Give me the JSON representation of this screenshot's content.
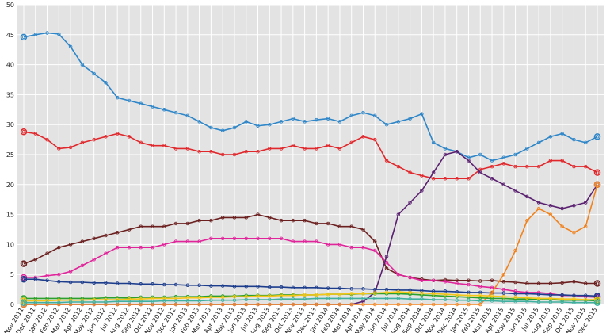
{
  "chart_data": {
    "type": "line",
    "title": "",
    "xlabel": "",
    "ylabel": "",
    "ylim": [
      0,
      50
    ],
    "yticks": [
      0,
      5,
      10,
      15,
      20,
      25,
      30,
      35,
      40,
      45,
      50
    ],
    "grid": true,
    "background": "#e3e3e3",
    "x_tick_labels": [
      "Nov 2011",
      "Dec 2011",
      "Jan 2012",
      "Feb 2012",
      "Mar 2012",
      "Apr 2012",
      "May 2012",
      "Jun 2012",
      "Jul 2012",
      "Aug 2012",
      "Sep 2012",
      "Oct 2012",
      "Nov 2012",
      "Dec 2012",
      "Jan 2013",
      "Feb 2013",
      "Mar 2013",
      "Apr 2013",
      "May 2013",
      "Jun 2013",
      "Jul 2013",
      "Aug 2013",
      "Sep 2013",
      "Oct 2013",
      "Nov 2013",
      "Dec 2013",
      "Jan 2014",
      "Feb 2014",
      "Mar 2014",
      "Apr 2014",
      "May 2014",
      "Jun 2014",
      "Jul 2014",
      "Aug 2014",
      "Sep 2014",
      "Oct 2014",
      "Nov 2014",
      "Dec 2014",
      "Jan 2015",
      "Feb 2015",
      "Mar 2015",
      "Apr 2015",
      "May 2015",
      "Jun 2015",
      "Jul 2015",
      "Aug 2015",
      "Sep 2015",
      "Oct 2015",
      "Nov 2015",
      "Dec 2015"
    ],
    "series": [
      {
        "color": "#2e86c8",
        "values": [
          44.6,
          45,
          45.3,
          45.1,
          43,
          40,
          38.5,
          37,
          34.5,
          34,
          33.5,
          33,
          32.5,
          32,
          31.5,
          30.5,
          29.5,
          29,
          29.5,
          30.5,
          29.8,
          30,
          30.5,
          31,
          30.5,
          30.8,
          31,
          30.5,
          31.5,
          32,
          31.5,
          30,
          30.5,
          31,
          31.8,
          27,
          26,
          25.5,
          24.5,
          25,
          24,
          24.5,
          25,
          26,
          27,
          28,
          28.5,
          27.5,
          27,
          28
        ]
      },
      {
        "color": "#e0282c",
        "values": [
          28.8,
          28.5,
          27.5,
          26,
          26.2,
          27,
          27.5,
          28,
          28.5,
          28,
          27,
          26.5,
          26.5,
          26,
          26,
          25.5,
          25.5,
          25,
          25,
          25.5,
          25.5,
          26,
          26,
          26.5,
          26,
          26,
          26.5,
          26,
          27,
          28,
          27.5,
          24,
          23,
          22,
          21.5,
          21,
          21,
          21,
          21,
          22.5,
          23,
          23.5,
          23,
          23,
          23,
          24,
          24,
          23,
          23,
          22
        ]
      },
      {
        "color": "#6b1f1f",
        "values": [
          6.8,
          7.5,
          8.5,
          9.5,
          10,
          10.5,
          11,
          11.5,
          12,
          12.5,
          13,
          13,
          13,
          13.5,
          13.5,
          14,
          14,
          14.5,
          14.5,
          14.5,
          15,
          14.5,
          14,
          14,
          14,
          13.5,
          13.5,
          13,
          13,
          12.5,
          10.5,
          6,
          5,
          4.5,
          4.2,
          4,
          4.1,
          4,
          4,
          3.9,
          4,
          3.8,
          3.7,
          3.5,
          3.5,
          3.5,
          3.6,
          3.8,
          3.5,
          3.5
        ]
      },
      {
        "color": "#e0249a",
        "values": [
          4.5,
          4.5,
          4.8,
          5,
          5.5,
          6.5,
          7.5,
          8.5,
          9.5,
          9.5,
          9.5,
          9.5,
          10,
          10.5,
          10.5,
          10.5,
          11,
          11,
          11,
          11,
          11,
          11,
          11,
          10.5,
          10.5,
          10.5,
          10,
          10,
          9.5,
          9.5,
          9,
          7,
          5,
          4.5,
          4,
          4,
          3.8,
          3.5,
          3.3,
          3,
          2.8,
          2.5,
          2.2,
          2,
          2,
          1.8,
          1.5,
          1.5,
          1.3,
          1.2
        ]
      },
      {
        "color": "#1c3c8c",
        "values": [
          4.2,
          4.2,
          4,
          3.8,
          3.7,
          3.7,
          3.6,
          3.6,
          3.5,
          3.5,
          3.4,
          3.4,
          3.3,
          3.3,
          3.2,
          3.2,
          3.1,
          3.1,
          3,
          3,
          3,
          2.9,
          2.9,
          2.8,
          2.8,
          2.8,
          2.7,
          2.7,
          2.6,
          2.6,
          2.5,
          2.5,
          2.4,
          2.4,
          2.3,
          2.2,
          2.2,
          2.1,
          2,
          2,
          1.9,
          1.9,
          1.8,
          1.8,
          1.7,
          1.6,
          1.6,
          1.5,
          1.5,
          1.4
        ]
      },
      {
        "color": "#5a2070",
        "values": [
          0,
          0,
          0,
          0,
          0,
          0,
          0,
          0,
          0,
          0,
          0,
          0,
          0,
          0,
          0,
          0,
          0,
          0,
          0,
          0,
          0,
          0,
          0,
          0,
          0,
          0,
          0,
          0,
          0,
          0.5,
          2,
          8,
          15,
          17,
          19,
          22,
          25,
          25.5,
          24,
          22,
          21,
          20,
          19,
          18,
          17,
          16.5,
          16,
          16.5,
          17,
          20
        ]
      },
      {
        "color": "#f0821e",
        "values": [
          0,
          0,
          0,
          0,
          0,
          0,
          0,
          0,
          0,
          0,
          0,
          0,
          0,
          0,
          0,
          0,
          0,
          0,
          0,
          0,
          0,
          0,
          0,
          0,
          0,
          0,
          0,
          0,
          0,
          0,
          0,
          0,
          0,
          0,
          0,
          0,
          0,
          0,
          0,
          0,
          2,
          5,
          9,
          14,
          16,
          15,
          13,
          12,
          13,
          20
        ]
      },
      {
        "color": "#2ca02c",
        "values": [
          1,
          1,
          1,
          1,
          1,
          1,
          1,
          1.1,
          1.1,
          1.1,
          1.2,
          1.2,
          1.2,
          1.3,
          1.3,
          1.3,
          1.4,
          1.4,
          1.4,
          1.5,
          1.5,
          1.5,
          1.6,
          1.6,
          1.6,
          1.6,
          1.7,
          1.7,
          1.7,
          1.8,
          1.8,
          1.8,
          1.8,
          1.7,
          1.6,
          1.5,
          1.4,
          1.3,
          1.2,
          1.1,
          1,
          1,
          0.9,
          0.9,
          0.8,
          0.8,
          0.7,
          0.7,
          0.7,
          0.6
        ]
      },
      {
        "color": "#f5c518",
        "values": [
          0.6,
          0.6,
          0.6,
          0.7,
          0.7,
          0.7,
          0.8,
          0.8,
          0.8,
          0.9,
          0.9,
          1,
          1,
          1,
          1.1,
          1.1,
          1.2,
          1.2,
          1.3,
          1.3,
          1.4,
          1.4,
          1.5,
          1.5,
          1.6,
          1.6,
          1.7,
          1.7,
          1.8,
          1.8,
          1.9,
          2,
          2.1,
          2,
          1.9,
          1.8,
          1.7,
          1.6,
          1.5,
          1.5,
          1.4,
          1.3,
          1.2,
          1.1,
          1,
          1,
          0.9,
          0.9,
          0.8,
          0.8
        ]
      },
      {
        "color": "#40b0a0",
        "values": [
          0.3,
          0.3,
          0.3,
          0.3,
          0.4,
          0.4,
          0.4,
          0.4,
          0.5,
          0.5,
          0.5,
          0.5,
          0.6,
          0.6,
          0.6,
          0.6,
          0.7,
          0.7,
          0.7,
          0.8,
          0.8,
          0.8,
          0.9,
          0.9,
          0.9,
          1,
          1,
          1,
          1,
          1,
          1,
          1,
          1,
          0.9,
          0.9,
          0.8,
          0.8,
          0.7,
          0.7,
          0.6,
          0.6,
          0.5,
          0.5,
          0.5,
          0.4,
          0.4,
          0.4,
          0.3,
          0.3,
          0.3
        ]
      }
    ]
  }
}
